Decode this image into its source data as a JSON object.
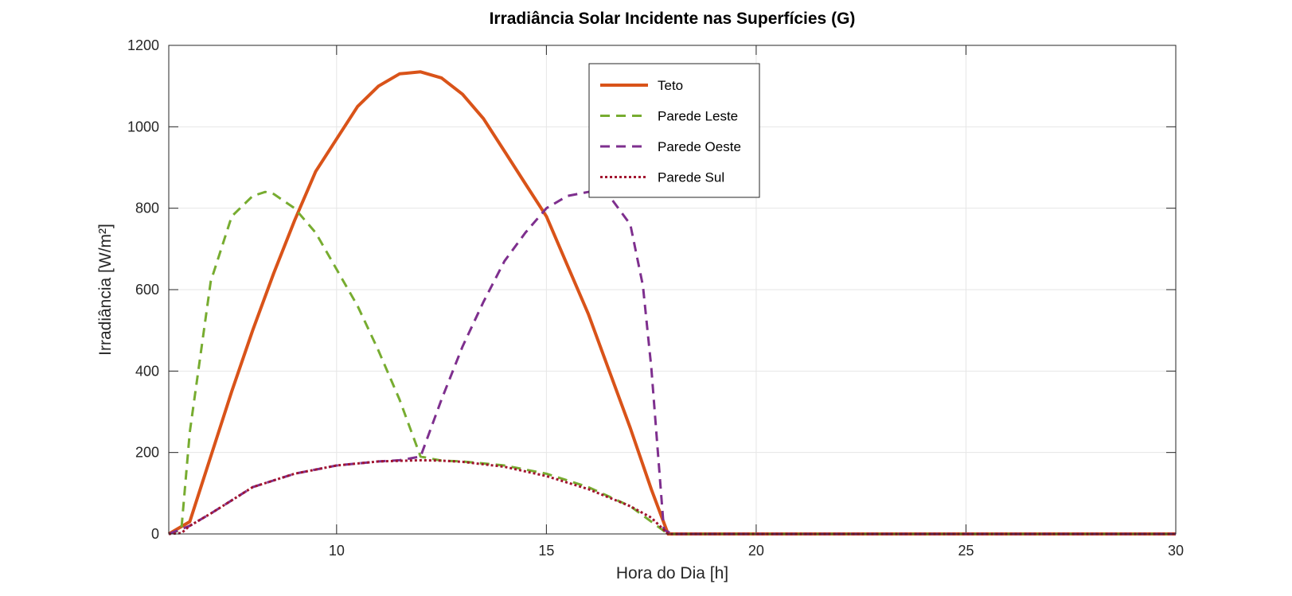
{
  "chart_data": {
    "type": "line",
    "title": "Irradiância Solar Incidente nas Superfícies (G)",
    "xlabel": "Hora do Dia [h]",
    "ylabel": "Irradiância [W/m²]",
    "xlim": [
      6,
      30
    ],
    "ylim": [
      0,
      1200
    ],
    "xticks": [
      10,
      15,
      20,
      25,
      30
    ],
    "yticks": [
      0,
      200,
      400,
      600,
      800,
      1000,
      1200
    ],
    "grid": true,
    "legend_position": "top-center",
    "series": [
      {
        "name": "Teto",
        "color": "#d95319",
        "dash": "solid",
        "x": [
          6,
          6.5,
          7,
          7.5,
          8,
          8.5,
          9,
          9.5,
          10,
          10.5,
          11,
          11.5,
          12,
          12.5,
          13,
          13.5,
          14,
          14.5,
          15,
          15.5,
          16,
          16.5,
          17,
          17.5,
          17.9,
          18,
          20,
          25,
          30
        ],
        "y": [
          0,
          30,
          190,
          350,
          500,
          640,
          770,
          890,
          970,
          1050,
          1100,
          1130,
          1135,
          1120,
          1080,
          1020,
          940,
          860,
          780,
          660,
          540,
          400,
          260,
          110,
          0,
          0,
          0,
          0,
          0
        ]
      },
      {
        "name": "Parede Leste",
        "color": "#77ac30",
        "dash": "dashed",
        "x": [
          6,
          6.3,
          6.5,
          7,
          7.5,
          8,
          8.3,
          8.5,
          9,
          9.5,
          10,
          10.5,
          11,
          11.5,
          12,
          12.5,
          13,
          14,
          15,
          16,
          17,
          17.9,
          18,
          20,
          25,
          30
        ],
        "y": [
          0,
          10,
          250,
          620,
          780,
          830,
          840,
          835,
          800,
          740,
          650,
          560,
          450,
          330,
          190,
          180,
          178,
          168,
          148,
          115,
          68,
          0,
          0,
          0,
          0,
          0
        ]
      },
      {
        "name": "Parede Oeste",
        "color": "#7e2f8e",
        "dash": "dashed",
        "x": [
          6,
          6.5,
          7,
          8,
          9,
          10,
          11,
          11.5,
          12,
          12.5,
          13,
          13.5,
          14,
          14.5,
          15,
          15.5,
          16,
          16.5,
          17,
          17.3,
          17.5,
          17.8,
          18,
          20,
          25,
          30
        ],
        "y": [
          0,
          20,
          50,
          115,
          148,
          168,
          178,
          181,
          190,
          330,
          460,
          570,
          670,
          740,
          800,
          830,
          840,
          830,
          760,
          610,
          410,
          10,
          0,
          0,
          0,
          0
        ]
      },
      {
        "name": "Parede Sul",
        "color": "#a2142f",
        "dash": "dotted",
        "x": [
          6,
          6.3,
          6.5,
          7,
          8,
          9,
          10,
          11,
          12,
          12.5,
          13,
          14,
          15,
          16,
          17,
          17.5,
          17.9,
          18,
          20,
          25,
          30
        ],
        "y": [
          0,
          2,
          20,
          50,
          115,
          148,
          168,
          178,
          181,
          180,
          177,
          165,
          142,
          110,
          68,
          40,
          0,
          0,
          0,
          0,
          0
        ]
      }
    ]
  }
}
